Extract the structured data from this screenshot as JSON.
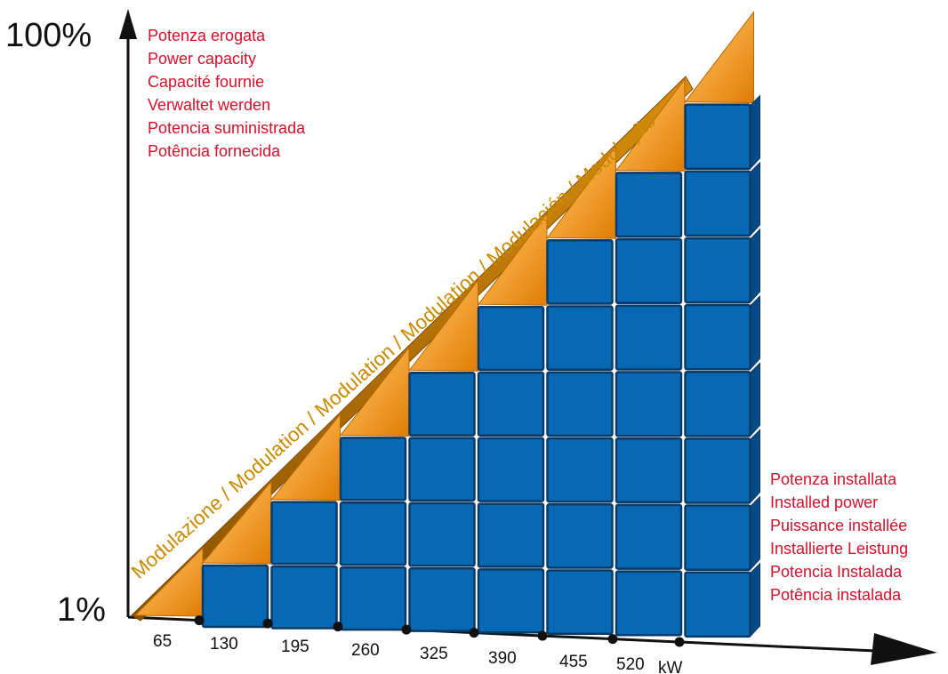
{
  "chart_data": {
    "type": "bar",
    "categories": [
      "65",
      "130",
      "195",
      "260",
      "325",
      "390",
      "455",
      "520"
    ],
    "values": [
      1,
      2,
      3,
      4,
      5,
      6,
      7,
      8
    ],
    "x_unit": "kW",
    "y_max_label": "100%",
    "y_min_label": "1%",
    "diagonal_label": "Modulazione / Modulation / Modulation / Modulation / Modulación / Modulação",
    "top_caption": [
      "Potenza erogata",
      "Power capacity",
      "Capacité fournie",
      "Verwaltet werden",
      "Potencia suministrada",
      "Potência fornecida"
    ],
    "right_caption": [
      "Potenza installata",
      "Installed power",
      "Puissance installée",
      "Installierte Leistung",
      "Potencia Instalada",
      "Potência instalada"
    ]
  },
  "colors": {
    "cube_front": "#0768b3",
    "cube_side": "#074a87",
    "cube_top": "#2b7fc4",
    "cube_edge": "#0c3a66",
    "orange_light": "#fde0b5",
    "orange_dark": "#e27f06",
    "band": "#c97a04",
    "caption": "#d4102b",
    "axis": "#111111"
  }
}
